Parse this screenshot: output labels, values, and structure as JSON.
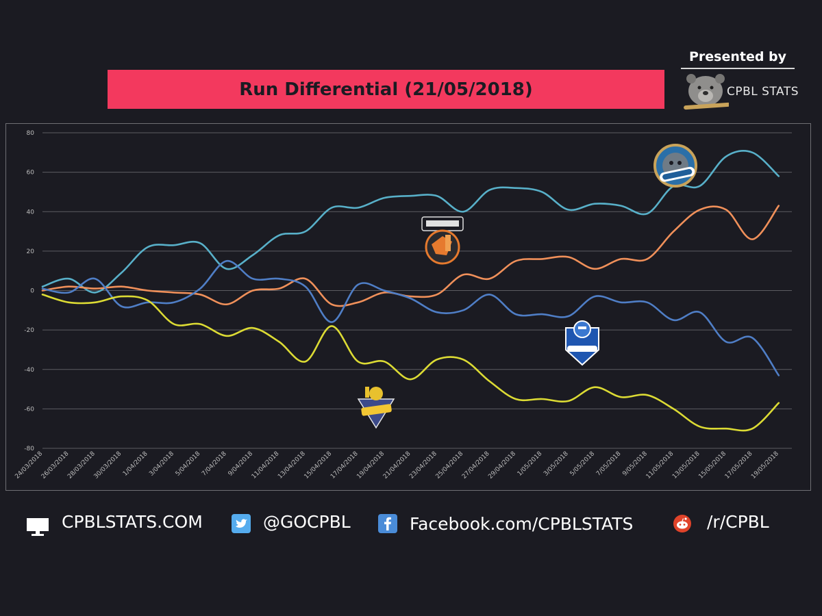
{
  "header": {
    "title": "Run Differential (21/05/2018)",
    "presented_by": "Presented by",
    "brand": "CPBL STATS",
    "title_bg_color": "#f3395e",
    "background_color": "#1b1b22"
  },
  "team_logos": [
    {
      "name": "Lamigo",
      "icon": "lamigo-monkeys-logo"
    },
    {
      "name": "UNILIONS",
      "icon": "unilions-logo"
    },
    {
      "name": "Guardians",
      "icon": "guardians-logo"
    },
    {
      "name": "Brothers",
      "icon": "brothers-logo"
    }
  ],
  "footer": {
    "website": "CPBLSTATS.COM",
    "twitter": "@GOCPBL",
    "facebook": "Facebook.com/CPBLSTATS",
    "reddit": "/r/CPBL",
    "icons": [
      "monitor-icon",
      "twitter-icon",
      "facebook-icon",
      "reddit-icon"
    ]
  },
  "chart_data": {
    "type": "line",
    "title": "Run Differential (21/05/2018)",
    "xlabel": "",
    "ylabel": "",
    "ylim": [
      -80,
      80
    ],
    "y_ticks": [
      80,
      60,
      40,
      20,
      0,
      -20,
      -40,
      -60,
      -80
    ],
    "grid": true,
    "x": [
      "24/03/2018",
      "26/03/2018",
      "28/03/2018",
      "30/03/2018",
      "1/04/2018",
      "3/04/2018",
      "5/04/2018",
      "7/04/2018",
      "9/04/2018",
      "11/04/2018",
      "13/04/2018",
      "15/04/2018",
      "17/04/2018",
      "19/04/2018",
      "21/04/2018",
      "23/04/2018",
      "25/04/2018",
      "27/04/2018",
      "29/04/2018",
      "1/05/2018",
      "3/05/2018",
      "5/05/2018",
      "7/05/2018",
      "9/05/2018",
      "11/05/2018",
      "13/05/2018",
      "15/05/2018",
      "17/05/2018",
      "19/05/2018"
    ],
    "x_tick_labels": [
      "24/03/2018",
      "26/03/2018",
      "28/03/2018",
      "30/03/2018",
      "1/04/2018",
      "3/04/2018",
      "5/04/2018",
      "7/04/2018",
      "9/04/2018",
      "11/04/2018",
      "13/04/2018",
      "15/04/2018",
      "17/04/2018",
      "19/04/2018",
      "21/04/2018",
      "23/04/2018",
      "25/04/2018",
      "27/04/2018",
      "29/04/2018",
      "1/05/2018",
      "3/05/2018",
      "5/05/2018",
      "7/05/2018",
      "9/05/2018",
      "11/05/2018",
      "13/05/2018",
      "15/05/2018",
      "17/05/2018",
      "19/05/2018"
    ],
    "series": [
      {
        "color": "#58b0c9",
        "values": [
          2,
          6,
          -1,
          9,
          22,
          23,
          24,
          11,
          18,
          28,
          30,
          42,
          42,
          47,
          48,
          48,
          40,
          51,
          52,
          50,
          41,
          44,
          43,
          39,
          53,
          53,
          68,
          70,
          58
        ]
      },
      {
        "color": "#f0905a",
        "values": [
          0,
          2,
          1,
          2,
          0,
          -1,
          -2,
          -7,
          0,
          1,
          6,
          -7,
          -6,
          -1,
          -3,
          -2,
          8,
          6,
          15,
          16,
          17,
          11,
          16,
          16,
          30,
          41,
          41,
          26,
          43
        ]
      },
      {
        "color": "#4f7ec6",
        "values": [
          1,
          -1,
          6,
          -8,
          -6,
          -6,
          1,
          15,
          6,
          6,
          2,
          -16,
          3,
          0,
          -4,
          -11,
          -10,
          -2,
          -12,
          -12,
          -13,
          -3,
          -6,
          -6,
          -15,
          -11,
          -26,
          -24,
          -43
        ]
      },
      {
        "color": "#dcdb34",
        "values": [
          -2,
          -6,
          -6,
          -3,
          -5,
          -17,
          -17,
          -23,
          -19,
          -26,
          -36,
          -18,
          -36,
          -36,
          -45,
          -35,
          -35,
          -46,
          -55,
          -55,
          -56,
          -49,
          -54,
          -53,
          -60,
          -69,
          -70,
          -70,
          -57
        ]
      }
    ]
  }
}
